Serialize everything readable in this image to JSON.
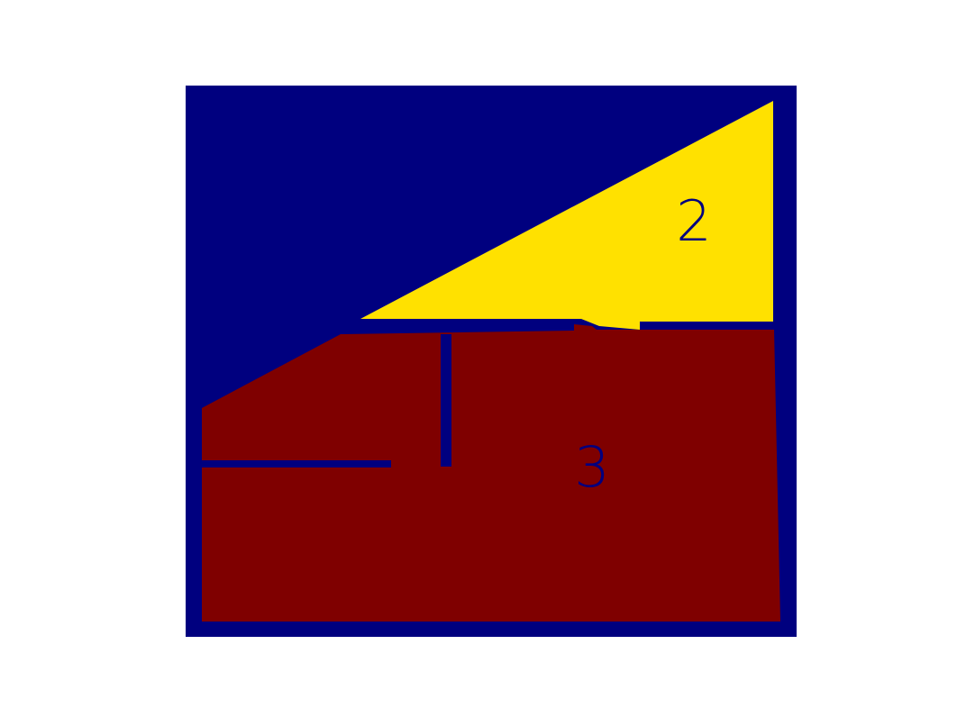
{
  "colors": {
    "background": "#ffffff",
    "wall": "#00007f",
    "region_2": "#ffe100",
    "region_3": "#7f0000",
    "label": "#00007f"
  },
  "rooms": [
    {
      "id": "region-2",
      "label": "2",
      "color": "#ffe100"
    },
    {
      "id": "region-3",
      "label": "3",
      "color": "#7f0000"
    }
  ]
}
